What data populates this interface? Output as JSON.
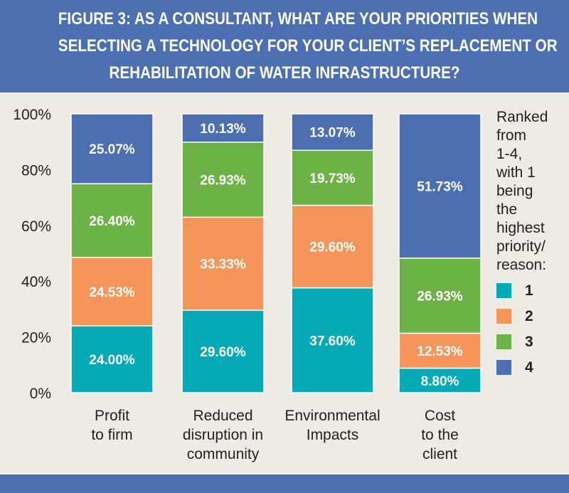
{
  "title_lines": [
    "FIGURE 3: AS A CONSULTANT, WHAT ARE YOUR PRIORITIES WHEN",
    "SELECTING A TECHNOLOGY FOR YOUR CLIENT’S REPLACEMENT OR",
    "REHABILITATION OF WATER INFRASTRUCTURE?"
  ],
  "legend": {
    "title": "Ranked\nfrom\n1-4,\nwith 1\nbeing\nthe\nhighest\npriority/\nreason:"
  },
  "colors": {
    "header": "#4c6fb2",
    "background": "#eeeae4"
  },
  "chart_data": {
    "type": "bar",
    "stacked": true,
    "categories": [
      [
        "Profit",
        "to firm"
      ],
      [
        "Reduced",
        "disruption in",
        "community"
      ],
      [
        "Environmental",
        "Impacts"
      ],
      [
        "Cost",
        "to the",
        "client"
      ]
    ],
    "series": [
      {
        "name": "1",
        "color": "#06aab7",
        "values": [
          24.0,
          29.6,
          37.6,
          8.8
        ]
      },
      {
        "name": "2",
        "color": "#f69559",
        "values": [
          24.53,
          33.33,
          29.6,
          12.53
        ]
      },
      {
        "name": "3",
        "color": "#6db246",
        "values": [
          26.4,
          26.93,
          19.73,
          26.93
        ]
      },
      {
        "name": "4",
        "color": "#4c6fb2",
        "values": [
          25.07,
          10.13,
          13.07,
          51.73
        ]
      }
    ],
    "data_labels": [
      [
        "24.00%",
        "24.53%",
        "26.40%",
        "25.07%"
      ],
      [
        "29.60%",
        "33.33%",
        "26.93%",
        "10.13%"
      ],
      [
        "37.60%",
        "29.60%",
        "19.73%",
        "13.07%"
      ],
      [
        "8.80%",
        "12.53%",
        "26.93%",
        "51.73%"
      ]
    ],
    "y_ticks": [
      "0%",
      "20%",
      "40%",
      "60%",
      "80%",
      "100%"
    ],
    "ylim": [
      0,
      100
    ],
    "legend_position": "right",
    "grid": false
  }
}
